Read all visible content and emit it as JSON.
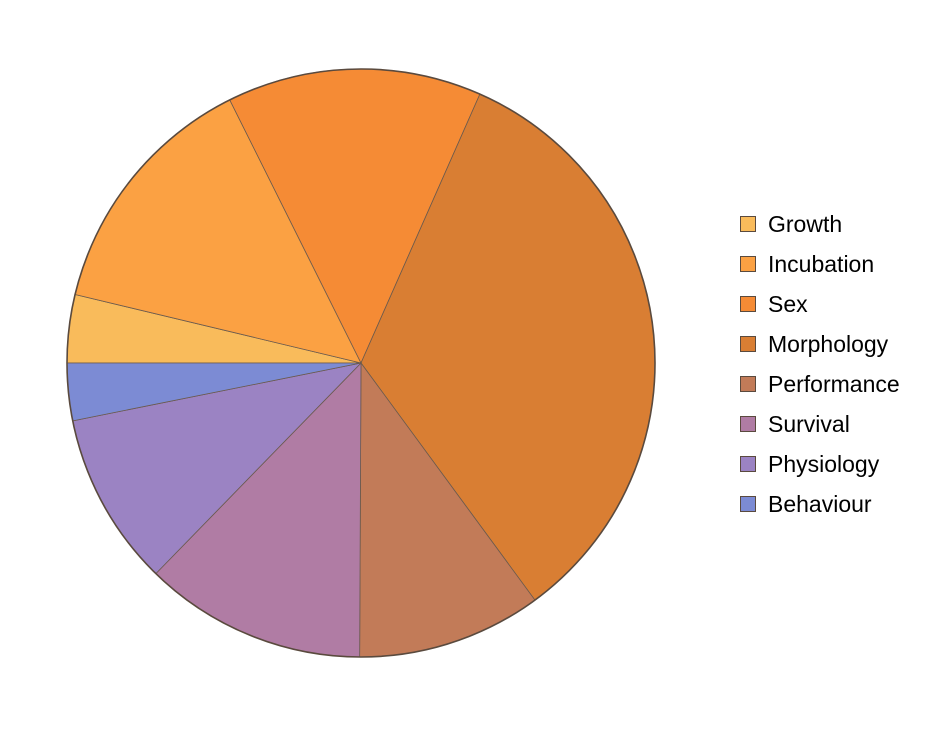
{
  "chart_data": {
    "type": "pie",
    "title": "",
    "legend_position": "right",
    "start_angle_deg": 180,
    "direction": "clockwise",
    "slice_border_color": "#5a4a3e",
    "series": [
      {
        "labels": [
          "Growth",
          "Incubation",
          "Sex",
          "Morphology",
          "Performance",
          "Survival",
          "Physiology",
          "Behaviour"
        ],
        "values": [
          3.8,
          14.1,
          14.2,
          33.8,
          10.3,
          12.4,
          9.7,
          3.2
        ],
        "colors": [
          "#f9bb5b",
          "#fba143",
          "#f58b35",
          "#d97e33",
          "#c27b58",
          "#b07ca4",
          "#9b83c3",
          "#7c8bd4"
        ]
      }
    ]
  }
}
